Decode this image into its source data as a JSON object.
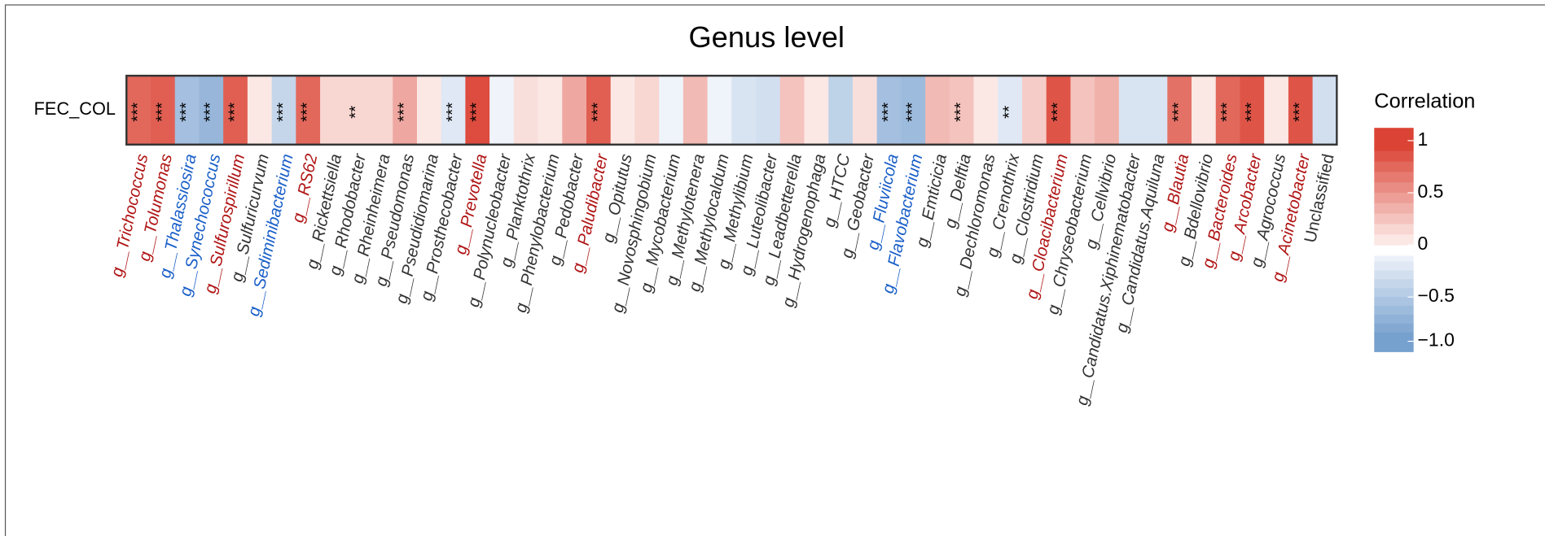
{
  "chart_data": {
    "type": "heatmap",
    "title": "Genus level",
    "rows": [
      "FEC_COL"
    ],
    "categories": [
      "g__Trichococcus",
      "g__Tolumonas",
      "g__Thalassiosira",
      "g__Synechococcus",
      "g__Sulfurospirillum",
      "g__Sulfuricurvum",
      "g__Sediminibacterium",
      "g__RS62",
      "g__Rickettsiella",
      "g__Rhodobacter",
      "g__Rheinheimera",
      "g__Pseudomonas",
      "g__Pseudidiomarina",
      "g__Prosthecobacter",
      "g__Prevotella",
      "g__Polynucleobacter",
      "g__Planktothrix",
      "g__Phenylobacterium",
      "g__Pedobacter",
      "g__Paludibacter",
      "g__Opitutus",
      "g__Novosphingobium",
      "g__Mycobacterium",
      "g__Methylotenera",
      "g__Methylocaldum",
      "g__Methylibium",
      "g__Luteolibacter",
      "g__Leadbetterella",
      "g__Hydrogenophaga",
      "g__HTCC",
      "g__Geobacter",
      "g__Fluviicola",
      "g__Flavobacterium",
      "g__Emticicia",
      "g__Delftia",
      "g__Dechloromonas",
      "g__Crenothrix",
      "g__Clostridium",
      "g__Cloacibacterium",
      "g__Chryseobacterium",
      "g__Cellvibrio",
      "g__Candidatus.Xiphinematobacter",
      "g__Candidatus.Aquiluna",
      "g__Blautia",
      "g__Bdellovibrio",
      "g__Bacteroides",
      "g__Arcobacter",
      "g__Agrococcus",
      "g__Acinetobacter",
      "Unclassified"
    ],
    "label_colors": [
      "#b01515",
      "#b01515",
      "#1a5fc8",
      "#1a5fc8",
      "#b01515",
      "#333333",
      "#1a5fc8",
      "#b01515",
      "#333333",
      "#333333",
      "#333333",
      "#333333",
      "#333333",
      "#333333",
      "#b01515",
      "#333333",
      "#333333",
      "#333333",
      "#333333",
      "#b01515",
      "#333333",
      "#333333",
      "#333333",
      "#333333",
      "#333333",
      "#333333",
      "#333333",
      "#333333",
      "#333333",
      "#333333",
      "#333333",
      "#1a5fc8",
      "#1a5fc8",
      "#333333",
      "#333333",
      "#333333",
      "#333333",
      "#333333",
      "#b01515",
      "#333333",
      "#333333",
      "#333333",
      "#333333",
      "#b01515",
      "#333333",
      "#b01515",
      "#b01515",
      "#333333",
      "#b01515",
      "#333333"
    ],
    "values": [
      0.75,
      0.8,
      -0.6,
      -0.7,
      0.8,
      0.05,
      -0.35,
      0.75,
      0.15,
      0.15,
      0.15,
      0.4,
      0.05,
      -0.15,
      0.9,
      -0.02,
      0.1,
      0.05,
      0.4,
      0.8,
      0.05,
      0.15,
      -0.03,
      0.3,
      -0.03,
      -0.2,
      -0.25,
      0.25,
      0.05,
      -0.4,
      0.1,
      -0.6,
      -0.65,
      0.3,
      0.25,
      0.05,
      -0.15,
      0.2,
      0.85,
      0.25,
      0.35,
      -0.2,
      -0.2,
      0.7,
      0.05,
      0.75,
      0.85,
      0.05,
      0.85,
      -0.25
    ],
    "significance": [
      "***",
      "***",
      "***",
      "***",
      "***",
      null,
      "***",
      "***",
      null,
      "**",
      null,
      "***",
      null,
      "***",
      "***",
      null,
      null,
      null,
      null,
      "***",
      null,
      null,
      null,
      null,
      null,
      null,
      null,
      null,
      null,
      null,
      null,
      "***",
      "***",
      null,
      "***",
      null,
      "**",
      null,
      "***",
      null,
      null,
      null,
      null,
      "***",
      null,
      "***",
      "***",
      null,
      "***",
      null
    ],
    "legend_title": "Correlation",
    "clim": [
      -1,
      1
    ],
    "legend_ticks": [
      1.0,
      0.5,
      0.0,
      {
        "value": -0.5,
        "label": "−0.5"
      },
      {
        "value": -1.0,
        "label": "−1.0"
      }
    ],
    "colors": {
      "positive": "#d93a2b",
      "negative": "#6f9bcc",
      "zero_positive": "#fdf1ef",
      "zero_negative": "#f3f6fb"
    }
  }
}
